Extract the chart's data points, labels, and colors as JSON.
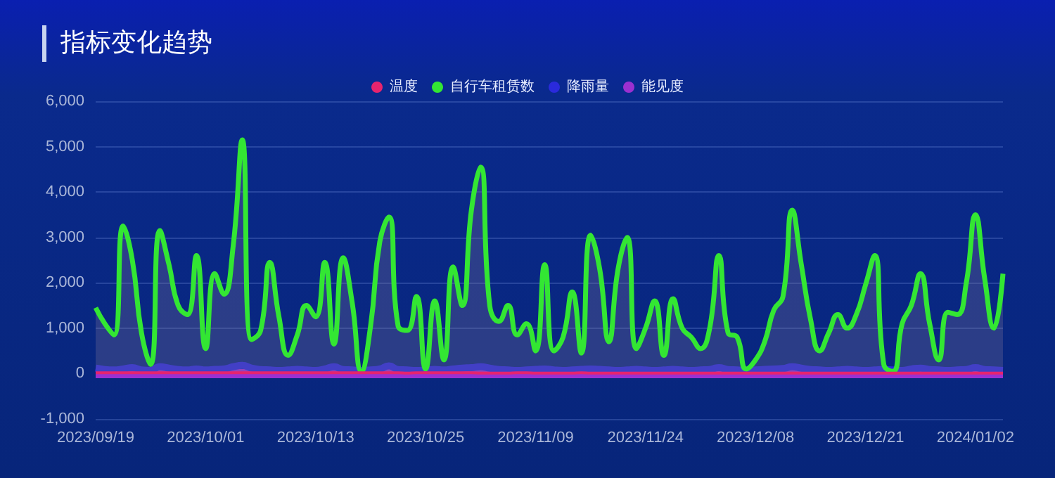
{
  "chart_data": {
    "type": "line",
    "title": "指标变化趋势",
    "categories": [
      "2023/09/19",
      null,
      null,
      null,
      null,
      null,
      null,
      null,
      null,
      null,
      null,
      null,
      "2023/10/01",
      null,
      null,
      null,
      null,
      null,
      null,
      null,
      null,
      null,
      null,
      null,
      "2023/10/13",
      null,
      null,
      null,
      null,
      null,
      null,
      null,
      null,
      null,
      null,
      null,
      "2023/10/25",
      null,
      null,
      null,
      null,
      null,
      null,
      null,
      null,
      null,
      null,
      null,
      "2023/11/09",
      null,
      null,
      null,
      null,
      null,
      null,
      null,
      null,
      null,
      null,
      null,
      "2023/11/24",
      null,
      null,
      null,
      null,
      null,
      null,
      null,
      null,
      null,
      null,
      null,
      "2023/12/08",
      null,
      null,
      null,
      null,
      null,
      null,
      null,
      null,
      null,
      null,
      null,
      "2023/12/21",
      null,
      null,
      null,
      null,
      null,
      null,
      null,
      null,
      null,
      null,
      null,
      "2024/01/02",
      null,
      null,
      null
    ],
    "series": [
      {
        "name": "温度",
        "color": "#e6246e",
        "values": [
          20,
          20,
          20,
          20,
          20,
          20,
          20,
          20,
          20,
          20,
          20,
          20,
          20,
          20,
          20,
          20,
          20,
          20,
          20,
          20,
          20,
          20,
          20,
          20,
          20,
          20,
          20,
          20,
          20,
          20,
          20,
          20,
          20,
          20,
          10,
          20,
          20,
          20,
          20,
          20,
          20,
          20,
          10,
          10,
          10,
          10,
          20,
          20,
          10,
          10,
          10,
          10,
          10,
          20,
          10,
          10,
          10,
          10,
          10,
          10,
          10,
          10,
          10,
          10,
          10,
          10,
          10,
          10,
          10,
          10,
          10,
          10,
          10,
          10,
          10,
          10,
          10,
          10,
          10,
          10,
          10,
          10,
          10,
          10,
          10,
          10,
          10,
          10,
          10,
          10,
          10,
          10,
          10,
          10,
          10,
          10,
          10,
          10,
          10,
          10
        ]
      },
      {
        "name": "自行车租赁数",
        "type": "area",
        "color": "#33e633",
        "values": [
          1450,
          1100,
          850,
          3250,
          2500,
          900,
          200,
          3150,
          2400,
          1500,
          1300,
          2600,
          550,
          2200,
          1750,
          2800,
          5150,
          750,
          950,
          2450,
          1250,
          400,
          850,
          1500,
          1250,
          2450,
          650,
          2550,
          1550,
          50,
          1050,
          2900,
          3450,
          1050,
          950,
          1700,
          100,
          1600,
          300,
          2350,
          1500,
          3600,
          4550,
          1500,
          1150,
          1500,
          850,
          1100,
          500,
          2400,
          500,
          800,
          1800,
          450,
          3050,
          2300,
          700,
          2300,
          3000,
          550,
          1000,
          1600,
          400,
          1650,
          1000,
          800,
          550,
          1000,
          2600,
          900,
          800,
          100,
          300,
          700,
          1400,
          1700,
          3600,
          2400,
          1200,
          500,
          900,
          1300,
          1000,
          1300,
          1950,
          2600,
          200,
          50,
          1100,
          1500,
          2200,
          1100,
          300,
          1350,
          1300,
          2000,
          3500,
          2100,
          1000,
          2200
        ]
      },
      {
        "name": "降雨量",
        "color": "#2a2adc",
        "values": [
          120,
          90,
          80,
          100,
          130,
          80,
          70,
          150,
          120,
          90,
          80,
          100,
          80,
          90,
          100,
          150,
          180,
          120,
          90,
          80,
          70,
          80,
          90,
          80,
          70,
          100,
          150,
          90,
          80,
          70,
          80,
          100,
          170,
          90,
          80,
          70,
          80,
          90,
          80,
          100,
          120,
          130,
          150,
          120,
          90,
          80,
          70,
          80,
          90,
          100,
          80,
          70,
          80,
          90,
          100,
          90,
          80,
          70,
          80,
          90,
          80,
          70,
          80,
          90,
          80,
          70,
          80,
          90,
          130,
          90,
          80,
          70,
          80,
          90,
          100,
          110,
          150,
          120,
          90,
          80,
          70,
          80,
          90,
          80,
          70,
          80,
          90,
          80,
          70,
          100,
          120,
          90,
          80,
          70,
          80,
          90,
          130,
          90,
          80,
          70
        ]
      },
      {
        "name": "能见度",
        "color": "#9b30d0",
        "values": [
          0,
          0,
          0,
          0,
          0,
          0,
          0,
          0,
          0,
          0,
          0,
          0,
          0,
          0,
          0,
          0,
          0,
          0,
          0,
          0,
          0,
          0,
          0,
          0,
          0,
          0,
          0,
          0,
          0,
          0,
          0,
          0,
          0,
          0,
          0,
          0,
          0,
          0,
          0,
          0,
          0,
          0,
          0,
          0,
          0,
          0,
          0,
          0,
          0,
          0,
          0,
          0,
          0,
          0,
          0,
          0,
          0,
          0,
          0,
          0,
          0,
          0,
          0,
          0,
          0,
          0,
          0,
          0,
          0,
          0,
          0,
          0,
          0,
          0,
          0,
          0,
          0,
          0,
          0,
          0,
          0,
          0,
          0,
          0,
          0,
          0,
          0,
          0,
          0,
          0,
          0,
          0,
          0,
          0,
          0,
          0,
          0,
          0,
          0,
          0
        ]
      }
    ],
    "ylim": [
      -1000,
      6000
    ],
    "yticks": [
      {
        "value": -1000,
        "label": "-1,000"
      },
      0,
      {
        "value": 1000,
        "label": "1,000"
      },
      {
        "value": 2000,
        "label": "2,000"
      },
      {
        "value": 3000,
        "label": "3,000"
      },
      {
        "value": 4000,
        "label": "4,000"
      },
      {
        "value": 5000,
        "label": "5,000"
      },
      {
        "value": 6000,
        "label": "6,000"
      }
    ],
    "grid": "y",
    "legend": "top",
    "marker": "none"
  }
}
